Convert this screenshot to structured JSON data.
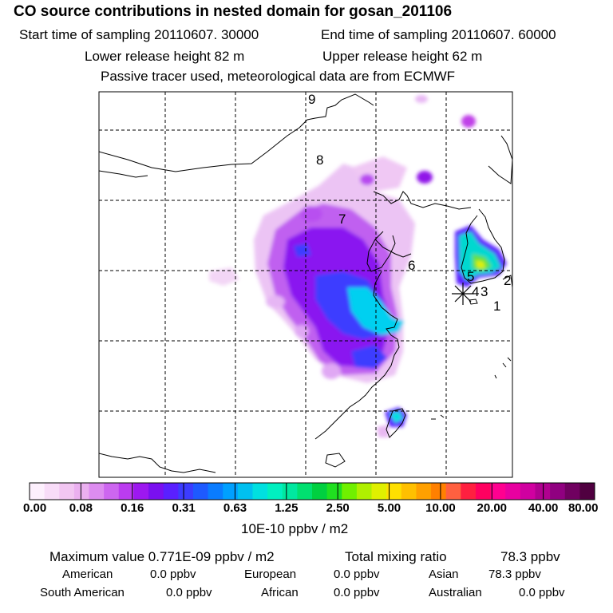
{
  "header": {
    "title": "CO  source contributions in nested domain for gosan_201106",
    "start_label": "Start time of sampling 20110607. 30000",
    "end_label": "End time of sampling 20110607. 60000",
    "lower_height": "Lower release height   82 m",
    "upper_height": "Upper release height   62 m",
    "tracer_note": "Passive tracer used, meteorological data are from ECMWF"
  },
  "chart_data": {
    "type": "heatmap",
    "title": "CO  source contributions in nested domain for gosan_201106",
    "colorbar": {
      "unit": "10E-10 ppbv / m2",
      "levels": [
        "0.00",
        "0.08",
        "0.16",
        "0.31",
        "0.63",
        "1.25",
        "2.50",
        "5.00",
        "10.00",
        "20.00",
        "40.00",
        "80.00"
      ],
      "colors": [
        "#fdf0fd",
        "#f8dcf8",
        "#f2c6f2",
        "#ebb0f0",
        "#dd8cf0",
        "#cd66f0",
        "#bb3cf0",
        "#9d18f0",
        "#7a10f0",
        "#5a20ff",
        "#3c3cff",
        "#1e5aff",
        "#0a7cff",
        "#00a0ff",
        "#00c0f0",
        "#00e0e0",
        "#00f0c0",
        "#00e8a0",
        "#00e070",
        "#00d040",
        "#20e020",
        "#70f000",
        "#b0f000",
        "#e0f000",
        "#ffe000",
        "#ffc000",
        "#ffa000",
        "#ff8000",
        "#ff6040",
        "#ff2040",
        "#ff0060",
        "#ff0090",
        "#e800a0",
        "#d000a0",
        "#b00090",
        "#900080",
        "#700060",
        "#500040"
      ]
    },
    "trajectory_labels": [
      "9",
      "8",
      "7",
      "6",
      "5",
      "4",
      "3",
      "2",
      "1"
    ],
    "receptor": "gosan"
  },
  "stats": {
    "max_label": "Maximum value  0.771E-09 ppbv / m2",
    "total_label": "Total mixing ratio",
    "total_value": "78.3 ppbv",
    "sources": [
      {
        "name": "American",
        "value": "0.0 ppbv"
      },
      {
        "name": "European",
        "value": "0.0 ppbv"
      },
      {
        "name": "Asian",
        "value": "78.3 ppbv"
      },
      {
        "name": "South American",
        "value": "0.0 ppbv"
      },
      {
        "name": "African",
        "value": "0.0 ppbv"
      },
      {
        "name": "Australian",
        "value": "0.0 ppbv"
      }
    ]
  }
}
